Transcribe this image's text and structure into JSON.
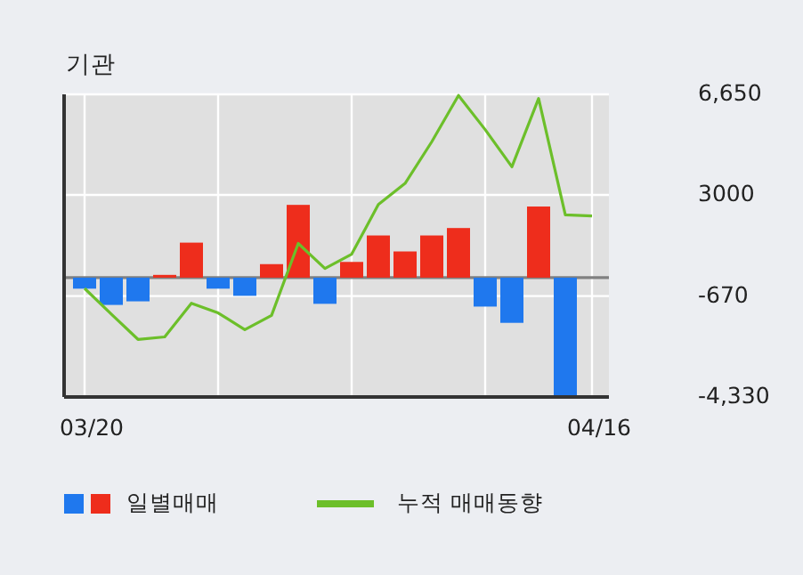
{
  "chart_data": {
    "type": "bar",
    "title": "기관",
    "categories": [
      "03/20",
      null,
      null,
      null,
      null,
      null,
      null,
      null,
      null,
      null,
      null,
      null,
      null,
      null,
      null,
      null,
      null,
      null,
      null,
      "04/16"
    ],
    "series": [
      {
        "name": "일별매매",
        "colors": [
          "#1f78ee",
          "#1f78ee",
          "#1f78ee",
          "#ee2d1c",
          "#ee2d1c",
          "#1f78ee",
          "#1f78ee",
          "#ee2d1c",
          "#ee2d1c",
          "#1f78ee",
          "#ee2d1c",
          "#ee2d1c",
          "#ee2d1c",
          "#ee2d1c",
          "#ee2d1c",
          "#1f78ee",
          "#1f78ee",
          "#ee2d1c",
          "#1f78ee",
          null
        ],
        "values": [
          -400,
          -990,
          -860,
          100,
          1270,
          -400,
          -660,
          490,
          2640,
          -950,
          570,
          1530,
          950,
          1530,
          1800,
          -1050,
          -1640,
          2580,
          -4310,
          null
        ]
      },
      {
        "name": "누적 매매동향",
        "type": "line",
        "color": "#6cbf2a",
        "values": [
          -390,
          -1320,
          -2240,
          -2150,
          -930,
          -1280,
          -1890,
          -1370,
          1240,
          330,
          850,
          2650,
          3420,
          4930,
          6610,
          5370,
          4020,
          6500,
          2280,
          2240
        ]
      }
    ],
    "ylim": [
      -4330,
      6650
    ],
    "yticks": [
      {
        "value": 6650,
        "label": "6,650"
      },
      3000,
      {
        "value": -670,
        "label": "-670"
      },
      {
        "value": -4330,
        "label": "-4,330"
      }
    ],
    "grid": true,
    "legend": "bottom",
    "marker": "none",
    "line_style": "solid"
  }
}
